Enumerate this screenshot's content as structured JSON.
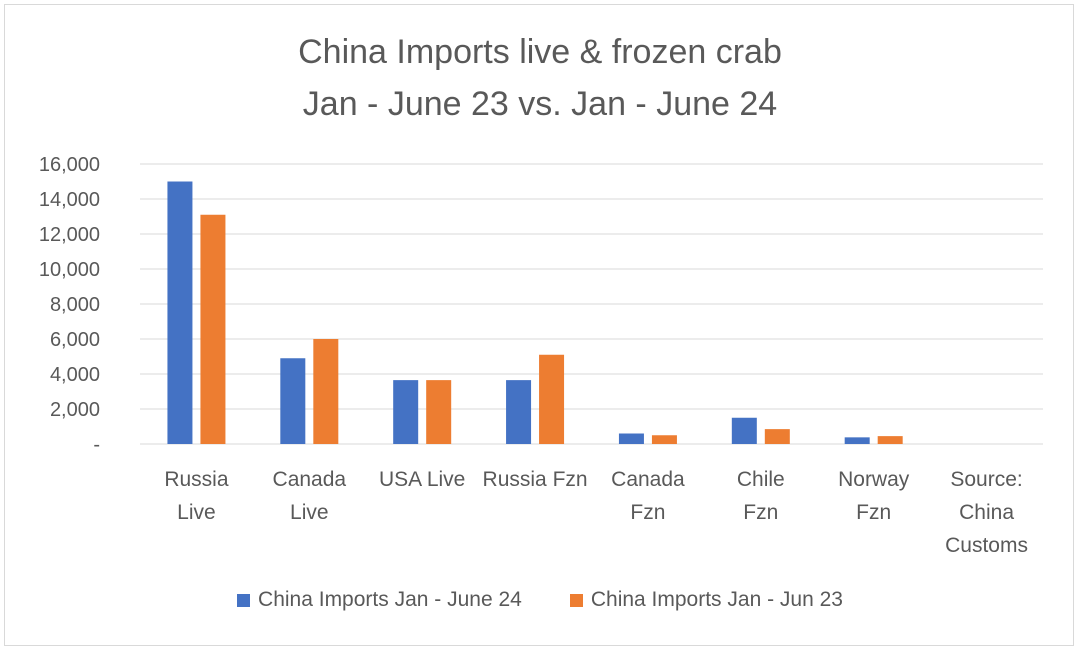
{
  "chart_data": {
    "type": "bar",
    "title_lines": [
      "China Imports live & frozen crab",
      "Jan - June 23 vs. Jan - June 24"
    ],
    "categories": [
      [
        "Russia",
        "Live"
      ],
      [
        "Canada",
        "Live"
      ],
      [
        "USA Live"
      ],
      [
        "Russia Fzn"
      ],
      [
        "Canada",
        "Fzn"
      ],
      [
        "Chile",
        "Fzn"
      ],
      [
        "Norway",
        "Fzn"
      ],
      [
        "Source:",
        "China",
        "Customs"
      ]
    ],
    "series": [
      {
        "name": "China Imports Jan - June 24",
        "color": "#4472C4",
        "values": [
          15000,
          4900,
          3650,
          3650,
          600,
          1500,
          380,
          null
        ]
      },
      {
        "name": "China Imports Jan - Jun 23",
        "color": "#ED7D31",
        "values": [
          13100,
          6000,
          3650,
          5100,
          500,
          850,
          450,
          null
        ]
      }
    ],
    "ylim": [
      0,
      16000
    ],
    "yticks": [
      0,
      2000,
      4000,
      6000,
      8000,
      10000,
      12000,
      14000,
      16000
    ],
    "ytick_labels": [
      "-",
      "2,000",
      "4,000",
      "6,000",
      "8,000",
      "10,000",
      "12,000",
      "14,000",
      "16,000"
    ],
    "grid": true,
    "legend_position": "bottom"
  }
}
